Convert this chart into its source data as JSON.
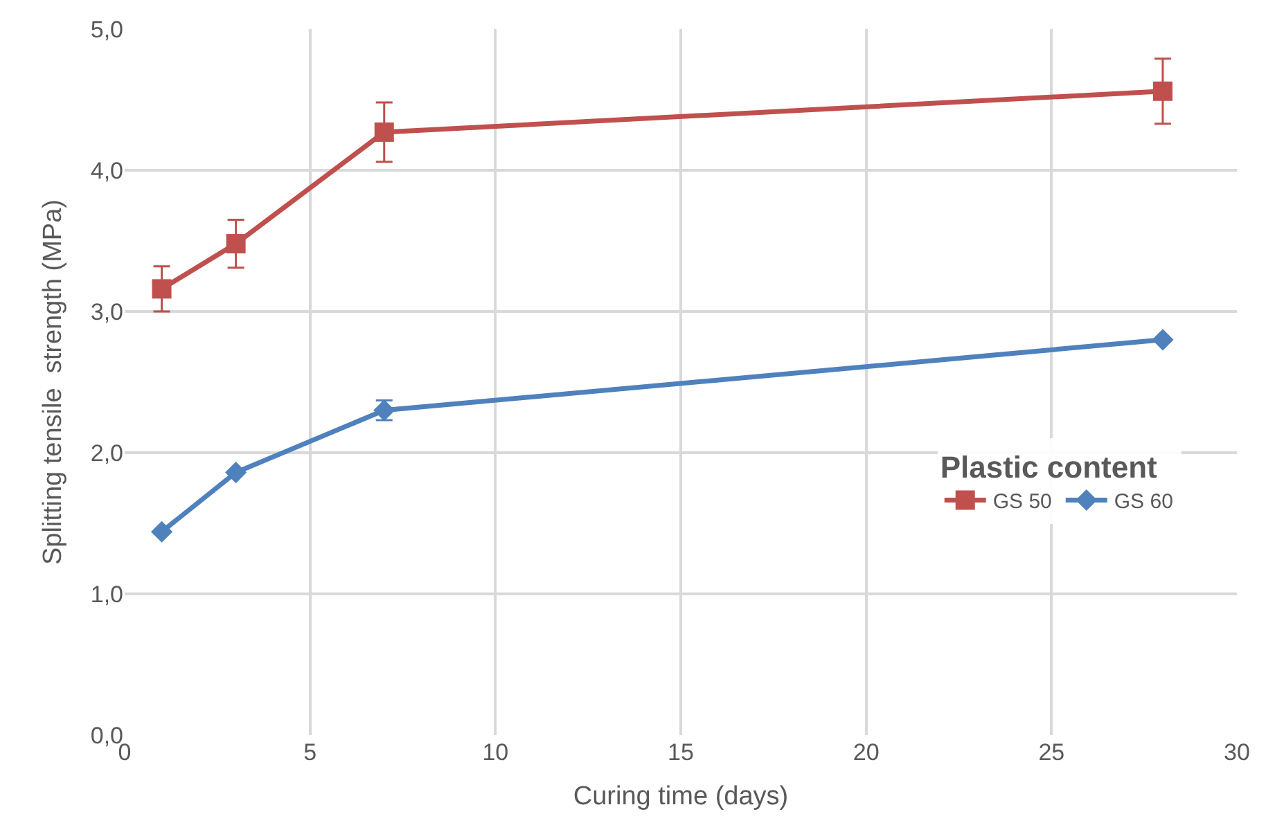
{
  "chart_data": {
    "type": "line",
    "xlabel": "Curing time (days)",
    "ylabel": "Splitting tensile  strength (MPa)",
    "legend_title": "Plastic content",
    "x": [
      1,
      3,
      7,
      28
    ],
    "series": [
      {
        "name": "GS 50",
        "color": "#c0504d",
        "values": [
          3.16,
          3.48,
          4.27,
          4.56
        ],
        "errors": [
          0.16,
          0.17,
          0.21,
          0.23
        ],
        "marker": "square"
      },
      {
        "name": "GS 60",
        "color": "#4f81bd",
        "values": [
          1.44,
          1.86,
          2.3,
          2.8
        ],
        "errors": [
          null,
          null,
          0.07,
          null
        ],
        "marker": "diamond"
      }
    ],
    "xlim": [
      0,
      30
    ],
    "xticks": [
      0,
      5,
      10,
      15,
      20,
      25,
      30
    ],
    "ylim": [
      0,
      5
    ],
    "yticks": [
      {
        "value": 0,
        "label": "0,0"
      },
      {
        "value": 1,
        "label": "1,0"
      },
      {
        "value": 2,
        "label": "2,0"
      },
      {
        "value": 3,
        "label": "3,0"
      },
      {
        "value": 4,
        "label": "4,0"
      },
      {
        "value": 5,
        "label": "5,0"
      }
    ],
    "grid": true,
    "legend": "right",
    "line_style": "solid"
  }
}
